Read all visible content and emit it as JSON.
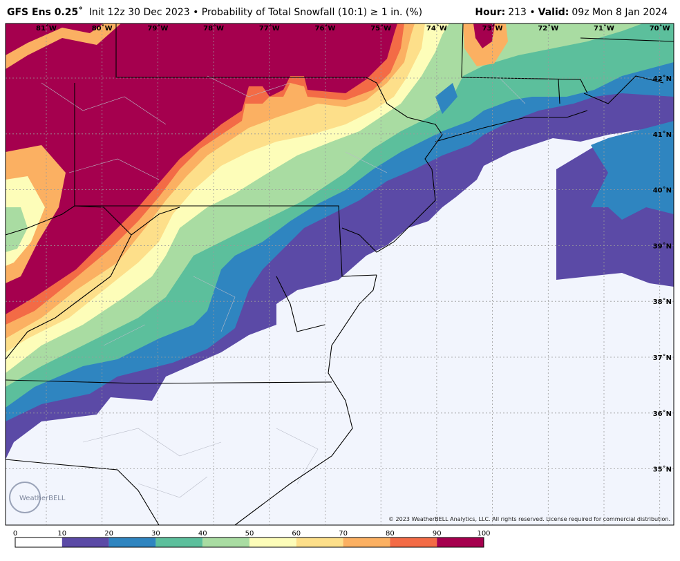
{
  "header": {
    "model": "GFS Ens 0.25˚",
    "description": "Init 12z 30 Dec 2023 • Probability of Total Snowfall (10:1)  ≥  1 in. (%)",
    "right": [
      {
        "text": "Hour:",
        "bold": true
      },
      {
        "text": "213 •"
      },
      {
        "text": "Valid:",
        "bold": true
      },
      {
        "text": "09z Mon 8 Jan 2024"
      }
    ]
  },
  "map": {
    "longitude_labels": [
      "81˚W",
      "80˚W",
      "79˚W",
      "78˚W",
      "77˚W",
      "76˚W",
      "75˚W",
      "74˚W",
      "73˚W",
      "72˚W",
      "71˚W",
      "70˚W"
    ],
    "latitude_labels": [
      "42˚N",
      "41˚N",
      "40˚N",
      "39˚N",
      "38˚N",
      "37˚N",
      "36˚N",
      "35˚N"
    ],
    "copyright": "© 2023 WeatherBELL Analytics, LLC. All rights reserved. License required for commercial distribution.",
    "logo": "WeatherBELL"
  },
  "colorbar": {
    "ticks": [
      0,
      10,
      20,
      30,
      40,
      50,
      60,
      70,
      80,
      90,
      100
    ],
    "colors": [
      "#ffffff",
      "#5b4aa6",
      "#2f85c0",
      "#5cbf9c",
      "#a9dca2",
      "#fdfdb9",
      "#fddf8a",
      "#fbb062",
      "#f36b46",
      "#a5004e"
    ]
  }
}
